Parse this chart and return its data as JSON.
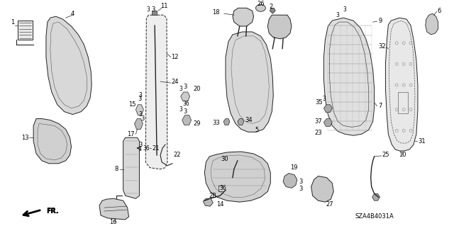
{
  "background_color": "#ffffff",
  "diagram_code": "SZA4B4031A",
  "line_color": "#222222",
  "fill_light": "#e8e8e8",
  "fill_mid": "#d0d0d0",
  "fill_dark": "#b8b8b8"
}
